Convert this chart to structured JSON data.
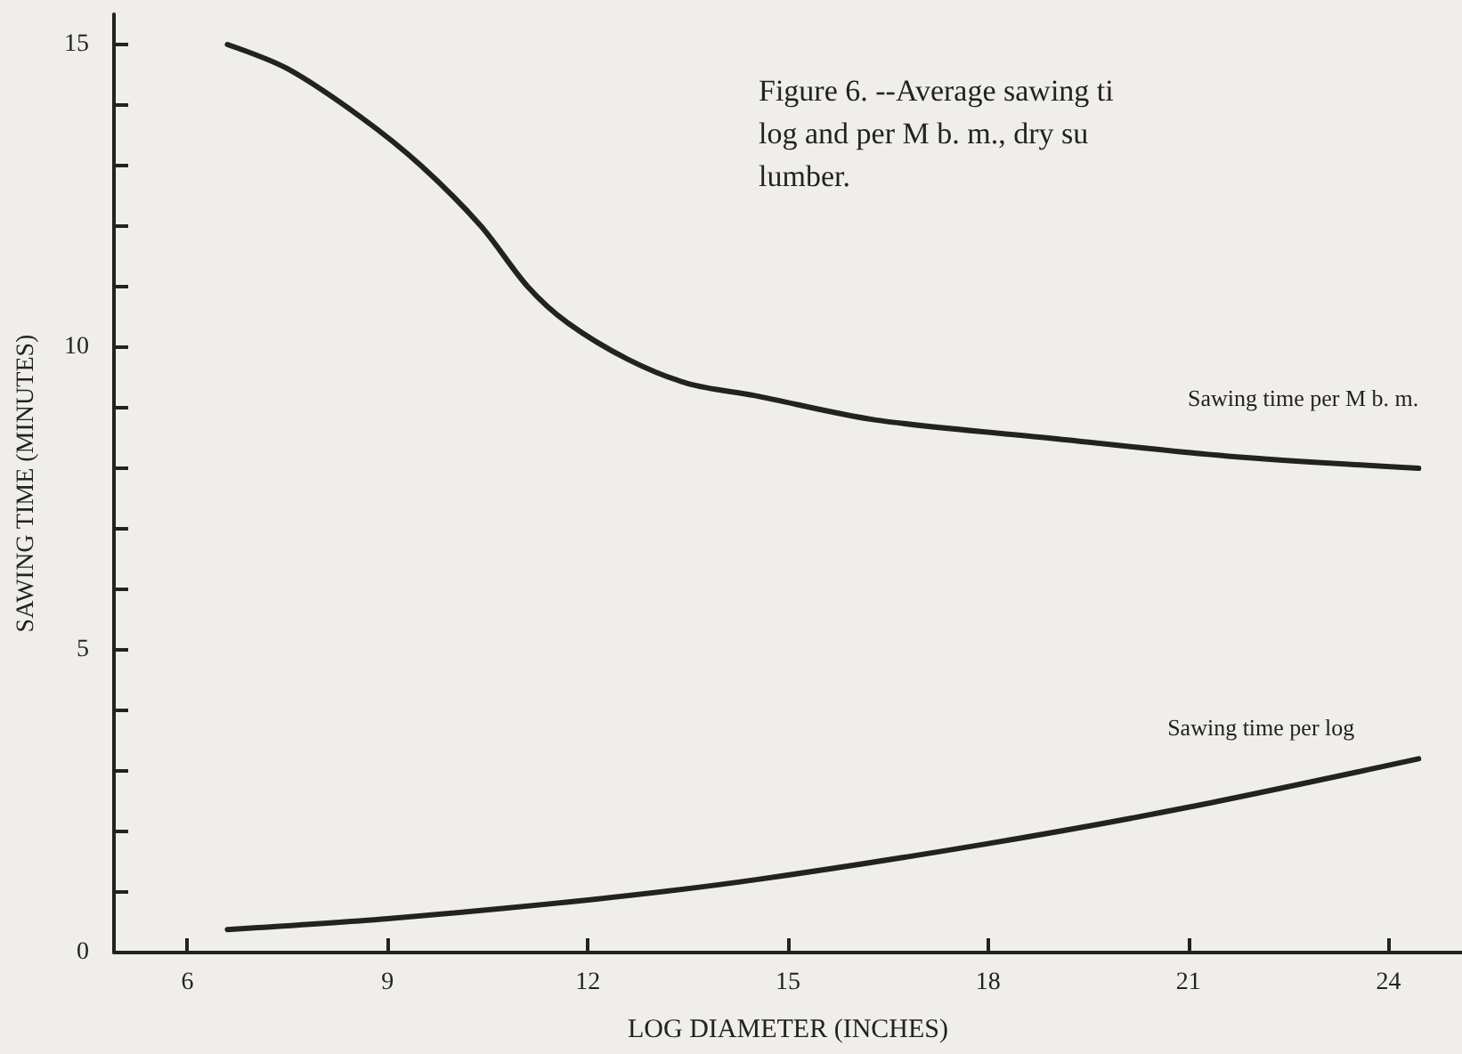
{
  "chart_data": {
    "type": "line",
    "title": "Figure 6. --Average sawing ti\nlog and per M b. m., dry su\nlumber.",
    "xlabel": "LOG DIAMETER (INCHES)",
    "ylabel": "SAWING TIME (MINUTES)",
    "xlim": [
      4.9,
      25.1
    ],
    "xticks": [
      6,
      9,
      12,
      15,
      18,
      21,
      24
    ],
    "ylim": [
      0,
      15.5
    ],
    "yticks": [
      0,
      {
        "value": 1,
        "label": null
      },
      {
        "value": 2,
        "label": null
      },
      {
        "value": 3,
        "label": null
      },
      {
        "value": 4,
        "label": null
      },
      5,
      {
        "value": 6,
        "label": null
      },
      {
        "value": 7,
        "label": null
      },
      {
        "value": 8,
        "label": null
      },
      {
        "value": 9,
        "label": null
      },
      10,
      {
        "value": 11,
        "label": null
      },
      {
        "value": 12,
        "label": null
      },
      {
        "value": 13,
        "label": null
      },
      {
        "value": 14,
        "label": null
      },
      15
    ],
    "grid": false,
    "legend": false,
    "marker": "none",
    "line_style": "solid",
    "series": [
      {
        "name": "Sawing time per M b. m.",
        "color": "#222222",
        "x": [
          6.6,
          7.5,
          8.6,
          9.5,
          10.4,
          11.1,
          11.7,
          12.6,
          13.5,
          14.5,
          16.3,
          18.9,
          21.6,
          24.45
        ],
        "values": [
          15.0,
          14.6,
          13.8,
          13.0,
          12.0,
          11.0,
          10.4,
          9.8,
          9.4,
          9.2,
          8.8,
          8.5,
          8.2,
          8.0
        ]
      },
      {
        "name": "Sawing time per log",
        "color": "#222222",
        "x": [
          6.6,
          9.0,
          12.1,
          14.5,
          18.0,
          21.0,
          24.45
        ],
        "values": [
          0.38,
          0.56,
          0.88,
          1.2,
          1.8,
          2.4,
          3.2
        ]
      }
    ]
  }
}
